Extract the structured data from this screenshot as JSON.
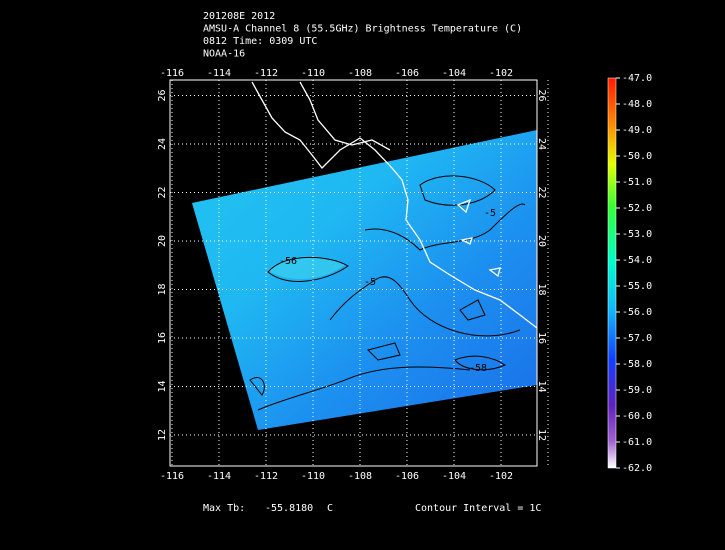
{
  "header": {
    "lines": [
      "201208E 2012",
      "AMSU-A Channel 8 (55.5GHz) Brightness Temperature (C)",
      "0812 Time: 0309 UTC",
      "NOAA-16"
    ]
  },
  "map": {
    "lon_labels": [
      "-116",
      "-114",
      "-112",
      "-110",
      "-108",
      "-106",
      "-104",
      "-102"
    ],
    "lat_labels": [
      "12",
      "14",
      "16",
      "18",
      "20",
      "22",
      "24",
      "26"
    ],
    "contour_labels": [
      "-56",
      "-5",
      "-5",
      "-58"
    ]
  },
  "colorbar": {
    "labels": [
      "-47.0",
      "-48.0",
      "-49.0",
      "-50.0",
      "-51.0",
      "-52.0",
      "-53.0",
      "-54.0",
      "-55.0",
      "-56.0",
      "-57.0",
      "-58.0",
      "-59.0",
      "-60.0",
      "-61.0",
      "-62.0"
    ]
  },
  "footer": {
    "max_label": "Max Tb:",
    "max_value": "-55.8180",
    "unit": "C",
    "interval": "Contour Interval = 1C"
  }
}
